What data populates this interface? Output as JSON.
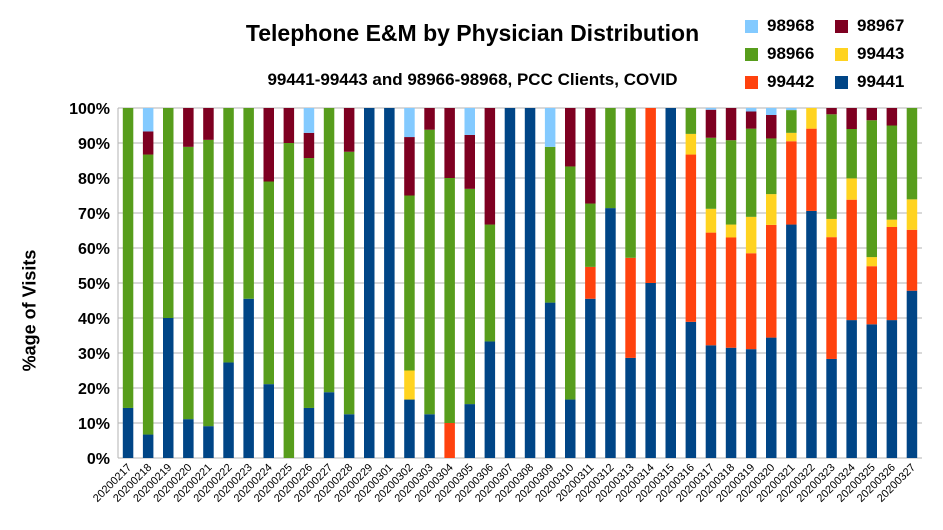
{
  "chart_data": {
    "type": "bar",
    "stacked": true,
    "title": "Telephone E&M by Physician Distribution",
    "subtitle": "99441-99443 and 98966-98968, PCC Clients, COVID",
    "ylabel": "%age of Visits",
    "xlabel": "",
    "ylim": [
      0,
      100
    ],
    "y_ticks": [
      "0%",
      "10%",
      "20%",
      "30%",
      "40%",
      "50%",
      "60%",
      "70%",
      "80%",
      "90%",
      "100%"
    ],
    "grid": true,
    "legend_position": "top-right",
    "categories": [
      "20200217",
      "20200218",
      "20200219",
      "20200220",
      "20200221",
      "20200222",
      "20200223",
      "20200224",
      "20200225",
      "20200226",
      "20200227",
      "20200228",
      "20200229",
      "20200301",
      "20200302",
      "20200303",
      "20200304",
      "20200305",
      "20200306",
      "20200307",
      "20200308",
      "20200309",
      "20200310",
      "20200311",
      "20200312",
      "20200313",
      "20200314",
      "20200315",
      "20200316",
      "20200317",
      "20200318",
      "20200319",
      "20200320",
      "20200321",
      "20200322",
      "20200323",
      "20200324",
      "20200325",
      "20200326",
      "20200327"
    ],
    "series": [
      {
        "name": "99441",
        "color": "#004586",
        "values": [
          14.3,
          6.7,
          40,
          11.1,
          9.1,
          27.3,
          45.5,
          21.1,
          0,
          14.3,
          18.8,
          12.5,
          100,
          100,
          16.7,
          12.5,
          0,
          15.4,
          33.3,
          100,
          100,
          44.4,
          16.7,
          45.5,
          71.4,
          28.6,
          50,
          100,
          38.9,
          32.2,
          31.5,
          31.1,
          34.4,
          66.7,
          70.6,
          28.3,
          39.4,
          38.2,
          39.4,
          47.8
        ]
      },
      {
        "name": "99442",
        "color": "#ff420e",
        "values": [
          0,
          0,
          0,
          0,
          0,
          0,
          0,
          0,
          0,
          0,
          0,
          0,
          0,
          0,
          0,
          0,
          10,
          0,
          0,
          0,
          0,
          0,
          0,
          9.1,
          0,
          28.6,
          50,
          0,
          47.8,
          32.2,
          31.5,
          27.4,
          32.2,
          23.8,
          23.5,
          34.8,
          34.4,
          16.6,
          26.6,
          17.4
        ]
      },
      {
        "name": "99443",
        "color": "#ffd320",
        "values": [
          0,
          0,
          0,
          0,
          0,
          0,
          0,
          0,
          0,
          0,
          0,
          0,
          0,
          0,
          8.3,
          0,
          0,
          0,
          0,
          0,
          0,
          0,
          0,
          0,
          0,
          0,
          0,
          0,
          5.9,
          6.8,
          3.7,
          10.4,
          8.8,
          2.4,
          5.9,
          5.2,
          6.1,
          2.6,
          2.1,
          8.7
        ]
      },
      {
        "name": "98966",
        "color": "#579d1c",
        "values": [
          85.7,
          80,
          60,
          77.8,
          81.8,
          72.7,
          54.5,
          57.9,
          90,
          71.4,
          81.2,
          75,
          0,
          0,
          50,
          81.3,
          70,
          61.5,
          33.4,
          0,
          0,
          44.5,
          66.6,
          18.1,
          28.6,
          42.8,
          0,
          0,
          7.4,
          20.3,
          24.1,
          25.2,
          15.9,
          6.5,
          0,
          29.9,
          14.1,
          39.1,
          26.9,
          26.1
        ]
      },
      {
        "name": "98967",
        "color": "#7e0021",
        "values": [
          0,
          6.6,
          0,
          11.1,
          9.1,
          0,
          0,
          21,
          10,
          7.2,
          0,
          12.5,
          0,
          0,
          16.7,
          6.2,
          20,
          15.4,
          33.3,
          0,
          0,
          0,
          16.7,
          27.3,
          0,
          0,
          0,
          0,
          0,
          8,
          9.2,
          4.9,
          6.7,
          0,
          0,
          1.8,
          6,
          3.5,
          5,
          0
        ]
      },
      {
        "name": "98968",
        "color": "#83caff",
        "values": [
          0,
          6.7,
          0,
          0,
          0,
          0,
          0,
          0,
          0,
          7.1,
          0,
          0,
          0,
          0,
          8.3,
          0,
          0,
          7.7,
          0,
          0,
          0,
          11.1,
          0,
          0,
          0,
          0,
          0,
          0,
          0,
          0.5,
          0,
          1,
          2,
          0.6,
          0,
          0,
          0,
          0,
          0,
          0
        ]
      }
    ],
    "legend": [
      {
        "name": "98968",
        "color": "#83caff"
      },
      {
        "name": "98967",
        "color": "#7e0021"
      },
      {
        "name": "98966",
        "color": "#579d1c"
      },
      {
        "name": "99443",
        "color": "#ffd320"
      },
      {
        "name": "99442",
        "color": "#ff420e"
      },
      {
        "name": "99441",
        "color": "#004586"
      }
    ]
  }
}
